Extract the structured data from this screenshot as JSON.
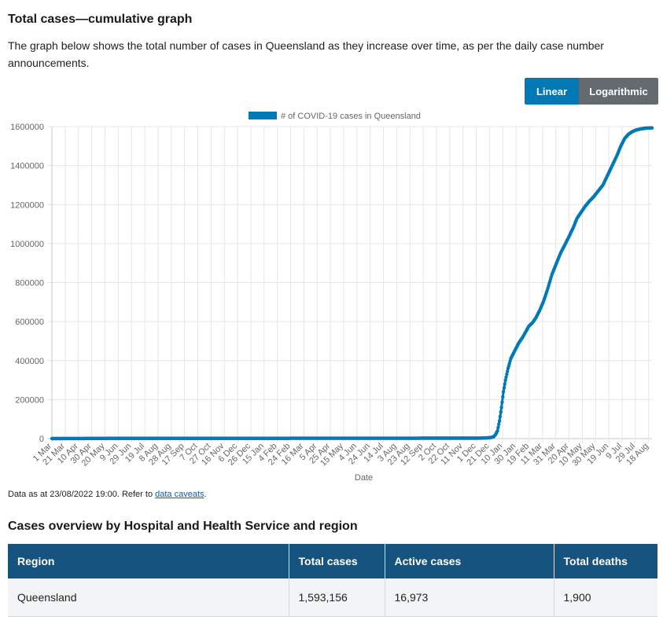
{
  "section_title": "Total cases—cumulative graph",
  "intro_text": "The graph below shows the total number of cases in Queensland as they increase over time, as per the daily case number announcements.",
  "toggle": {
    "linear": "Linear",
    "logarithmic": "Logarithmic",
    "active": "Linear"
  },
  "colors": {
    "series": "#0079b6",
    "toggle_active": "#0079b6",
    "toggle_inactive": "#636b70",
    "table_header": "#16537e"
  },
  "chart_data": {
    "type": "line",
    "title": "",
    "xlabel": "Date",
    "ylabel": "",
    "ylim": [
      0,
      1600000
    ],
    "yticks": [
      "0",
      "200000",
      "400000",
      "600000",
      "800000",
      "1000000",
      "1200000",
      "1400000",
      "1600000"
    ],
    "xticks": [
      "1 Mar",
      "21 Mar",
      "10 Apr",
      "30 Apr",
      "20 May",
      "9 Jun",
      "29 Jun",
      "19 Jul",
      "8 Aug",
      "28 Aug",
      "17 Sep",
      "7 Oct",
      "27 Oct",
      "16 Nov",
      "6 Dec",
      "26 Dec",
      "15 Jan",
      "4 Feb",
      "24 Feb",
      "16 Mar",
      "5 Apr",
      "25 Apr",
      "15 May",
      "4 Jun",
      "24 Jun",
      "14 Jul",
      "3 Aug",
      "23 Aug",
      "12 Sep",
      "2 Oct",
      "22 Oct",
      "11 Nov",
      "1 Dec",
      "21 Dec",
      "10 Jan",
      "30 Jan",
      "19 Feb",
      "11 Mar",
      "31 Mar",
      "20 Apr",
      "10 May",
      "30 May",
      "19 Jun",
      "9 Jul",
      "29 Jul",
      "18 Aug"
    ],
    "legend": "top-center",
    "grid": true,
    "series": [
      {
        "name": "# of COVID-19 cases in Queensland",
        "x": [
          "2020-03-01",
          "2020-06-01",
          "2020-12-01",
          "2021-06-01",
          "2021-12-01",
          "2021-12-15",
          "2021-12-22",
          "2021-12-27",
          "2021-12-30",
          "2022-01-02",
          "2022-01-05",
          "2022-01-08",
          "2022-01-11",
          "2022-01-14",
          "2022-01-18",
          "2022-01-22",
          "2022-01-28",
          "2022-02-03",
          "2022-02-09",
          "2022-02-14",
          "2022-02-18",
          "2022-02-24",
          "2022-03-01",
          "2022-03-07",
          "2022-03-12",
          "2022-03-18",
          "2022-03-25",
          "2022-04-01",
          "2022-04-07",
          "2022-04-13",
          "2022-04-19",
          "2022-04-26",
          "2022-05-02",
          "2022-05-08",
          "2022-05-14",
          "2022-05-20",
          "2022-05-27",
          "2022-06-03",
          "2022-06-10",
          "2022-06-17",
          "2022-06-24",
          "2022-07-01",
          "2022-07-07",
          "2022-07-13",
          "2022-07-19",
          "2022-07-25",
          "2022-07-31",
          "2022-08-06",
          "2022-08-12",
          "2022-08-18",
          "2022-08-23"
        ],
        "values": [
          0,
          1100,
          1250,
          1600,
          2000,
          3000,
          5000,
          9000,
          20000,
          40000,
          90000,
          160000,
          240000,
          300000,
          360000,
          410000,
          450000,
          490000,
          520000,
          550000,
          575000,
          595000,
          620000,
          660000,
          700000,
          760000,
          840000,
          900000,
          950000,
          990000,
          1030000,
          1080000,
          1130000,
          1160000,
          1190000,
          1215000,
          1240000,
          1270000,
          1300000,
          1350000,
          1400000,
          1450000,
          1500000,
          1540000,
          1562000,
          1575000,
          1583000,
          1588000,
          1591000,
          1592500,
          1593156
        ]
      }
    ]
  },
  "caveat": {
    "text": "Data as at 23/08/2022 19:00. Refer to ",
    "link": "data caveats",
    "end": "."
  },
  "table_title": "Cases overview by Hospital and Health Service and region",
  "table": {
    "headers": [
      "Region",
      "Total cases",
      "Active cases",
      "Total deaths"
    ],
    "rows": [
      [
        "Queensland",
        "1,593,156",
        "16,973",
        "1,900"
      ]
    ]
  }
}
